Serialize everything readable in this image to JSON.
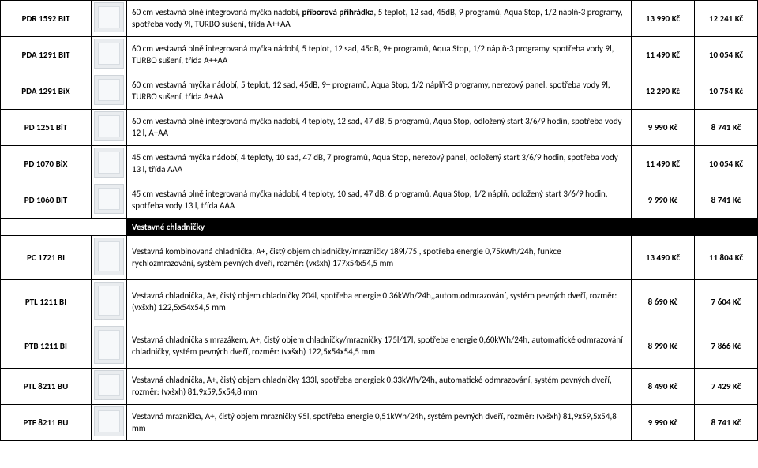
{
  "rows": [
    {
      "code": "PDR 1592 BIT",
      "imgClass": "img-box",
      "desc": "60 cm vestavná plně integrovaná myčka nádobí, <b>příborová přihrádka</b>, 5 teplot, 12 sad, 45dB, 9 programů, Aqua Stop, 1/2 náplň-3 programy, spotřeba vody 9l, TURBO sušení, třída A++AA",
      "p1": "13 990 Kč",
      "p2": "12 241 Kč"
    },
    {
      "code": "PDA 1291 BIT",
      "imgClass": "img-box",
      "desc": "60 cm vestavná plně integrovaná myčka nádobí, 5 teplot, 12 sad, 45dB, 9+ programů, Aqua Stop, 1/2 náplň-3 programy, spotřeba vody 9l, TURBO sušení, třída A++AA",
      "p1": "11 490 Kč",
      "p2": "10 054 Kč"
    },
    {
      "code": "PDA 1291 BiX",
      "imgClass": "img-box",
      "desc": "60 cm vestavná myčka nádobí, 5 teplot, 12 sad, 45dB, 9+ programů, Aqua Stop, 1/2 náplň-3 programy, nerezový panel, spotřeba vody 9l, TURBO sušení, třída A+AA",
      "p1": "12 290 Kč",
      "p2": "10 754 Kč"
    },
    {
      "code": "PD 1251 BiT",
      "imgClass": "img-box",
      "desc": "60 cm vestavná plně integrovaná myčka nádobí, 4 teploty, 12 sad, 47 dB, 5 programů, Aqua Stop, odložený start 3/6/9 hodin, spotřeba vody 12 l, A+AA",
      "p1": "9 990 Kč",
      "p2": "8 741 Kč"
    },
    {
      "code": "PD 1070 BiX",
      "imgClass": "img-box",
      "desc": "45 cm vestavná myčka nádobí, 4 teploty, 10 sad, 47 dB, 7 programů, Aqua Stop, nerezový panel, odložený start 3/6/9 hodin, spotřeba vody 13 l, třída AAA",
      "p1": "11 490 Kč",
      "p2": "10 054 Kč"
    },
    {
      "code": "PD 1060 BiT",
      "imgClass": "img-box",
      "desc": "45 cm vestavná plně integrovaná myčka nádobí, 4 teploty, 10 sad, 47 dB, 6 programů, Aqua Stop, 1/2 náplň, odložený start 3/6/9 hodin, spotřeba vody 13 l, třída AAA",
      "p1": "9 990 Kč",
      "p2": "8 741 Kč"
    },
    {
      "section": "Vestavné chladničky"
    },
    {
      "code": "PC 1721 BI",
      "imgClass": "img-box tall",
      "desc": "Vestavná kombinovaná chladnička, A+, čistý objem chladničky/mrazničky 189l/75l, spotřeba energie 0,75kWh/24h, funkce rychlozmrazování, systém pevných dveří, rozměr: (vxšxh) 177x54x54,5 mm",
      "p1": "13 490 Kč",
      "p2": "11 804 Kč"
    },
    {
      "code": "PTL 1211 BI",
      "imgClass": "img-box tall",
      "desc": "Vestavná chladnička, A+, čistý objem chladničky 204l, spotřeba energie 0,36kWh/24h,,autom.odmrazování, systém pevných dveří, rozměr: (vxšxh) 122,5x54x54,5 mm",
      "p1": "8 690 Kč",
      "p2": "7 604 Kč"
    },
    {
      "code": "PTB 1211 BI",
      "imgClass": "img-box tall",
      "desc": "Vestavná chladnička s mrazákem, A+, čistý objem chladničky/mrazničky 175l/17l, spotřeba energie 0,60kWh/24h, automatické odmrazování chladničky, systém pevných dveří, rozměr: (vxšxh) 122,5x54x54,5 mm",
      "p1": "8 990 Kč",
      "p2": "7 866 Kč"
    },
    {
      "code": "PTL 8211 BU",
      "imgClass": "img-box",
      "desc": "Vestavná chladnička, A+, čistý objem chladničky 133l, spotřeba energiek 0,33kWh/24h, automatické odmrazování, systém pevných dveří, rozměr: (vxšxh) 81,9x59,5x54,8 mm",
      "p1": "8 490 Kč",
      "p2": "7 429 Kč"
    },
    {
      "code": "PTF 8211 BU",
      "imgClass": "img-box",
      "desc": "Vestavná mraznička, A+, čistý objem mrazničky 95l, spotřeba energie 0,51kWh/24h, systém pevných dveří, rozměr: (vxšxh) 81,9x59,5x54,8 mm",
      "p1": "9 990 Kč",
      "p2": "8 741 Kč"
    }
  ]
}
